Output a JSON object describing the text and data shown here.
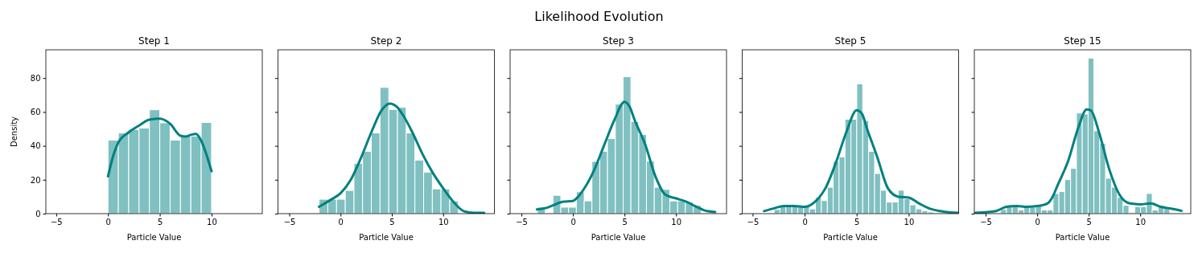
{
  "chart_data": [
    {
      "type": "histogram",
      "title": "Step 1",
      "xlabel": "Particle Value",
      "ylabel": "Density",
      "annotations": [
        "Likelihood Evolution"
      ],
      "color": "#80c0c0",
      "xlim": [
        -6.0,
        14.9
      ],
      "xticks": [
        -5,
        0,
        5,
        10
      ],
      "ylim": [
        0,
        96.7
      ],
      "yticks": [
        0,
        20,
        40,
        60,
        80
      ],
      "bins": [
        0,
        1,
        2,
        3,
        4,
        5,
        6,
        7,
        8,
        9,
        10
      ],
      "values": [
        43.4,
        47.6,
        49.7,
        50.5,
        61.3,
        53.6,
        43.4,
        45.8,
        45.8,
        53.8
      ],
      "series": [
        {
          "type": "line",
          "color": "#008080",
          "x": [
            0,
            0.5,
            1,
            2,
            3,
            4,
            5,
            6,
            7,
            7.5,
            8,
            8.5,
            9,
            9.5,
            10
          ],
          "values": [
            22,
            34,
            42,
            48,
            52,
            55.5,
            56,
            53,
            46,
            45.5,
            46.5,
            47,
            43,
            35,
            25
          ]
        }
      ]
    },
    {
      "type": "histogram",
      "title": "Step 2",
      "xlabel": "Particle Value",
      "tick_labels": "x",
      "color": "#80c0c0",
      "xlim": [
        -6.1,
        15.0
      ],
      "xticks": [
        -5,
        0,
        5,
        10
      ],
      "ylim": [
        0,
        96.7
      ],
      "yticks": [
        0,
        20,
        40,
        60,
        80
      ],
      "bins": [
        -2.09,
        -1.24,
        -0.39,
        0.46,
        1.31,
        2.15,
        3.0,
        3.85,
        4.7,
        5.55,
        6.4,
        7.25,
        8.1,
        8.95,
        9.79,
        10.64,
        11.49
      ],
      "values": [
        8.5,
        8.5,
        8.5,
        13.7,
        29.7,
        36.8,
        47.6,
        74.5,
        61.5,
        62.7,
        47.6,
        31.6,
        24.5,
        14.6,
        14.6,
        7.5
      ],
      "series": [
        {
          "type": "line",
          "color": "#008080",
          "x": [
            -2.1,
            -1,
            0,
            1,
            2,
            3,
            4,
            4.8,
            5.5,
            6,
            7,
            8,
            9,
            10,
            11,
            12,
            13,
            14
          ],
          "values": [
            4,
            8,
            12,
            20,
            33,
            48,
            61,
            65,
            63,
            59,
            48,
            35,
            24,
            15,
            7,
            1.5,
            0.5,
            0.5
          ]
        }
      ]
    },
    {
      "type": "histogram",
      "title": "Step 3",
      "xlabel": "Particle Value",
      "tick_labels": "x",
      "color": "#80c0c0",
      "xlim": [
        -6.1,
        14.9
      ],
      "xticks": [
        -5,
        0,
        5,
        10
      ],
      "ylim": [
        0,
        96.7
      ],
      "yticks": [
        0,
        20,
        40,
        60,
        80
      ],
      "bins": [
        -3.45,
        -2.69,
        -1.94,
        -1.18,
        -0.43,
        0.33,
        1.09,
        1.84,
        2.6,
        3.35,
        4.11,
        4.87,
        5.62,
        6.38,
        7.13,
        7.89,
        8.65,
        9.4,
        10.16,
        10.91,
        11.67,
        12.43,
        13.18,
        13.94
      ],
      "values": [
        3.8,
        0,
        10.8,
        3.8,
        3.8,
        12.9,
        7.5,
        30.8,
        36.8,
        44.3,
        64.6,
        80.8,
        54.4,
        46.7,
        31,
        15.6,
        14.3,
        7.5,
        7.5,
        6.9,
        4.9,
        null,
        null
      ],
      "series": [
        {
          "type": "line",
          "color": "#008080",
          "x": [
            -3.5,
            -2.5,
            -1.5,
            -1,
            0,
            0.5,
            1,
            2,
            3,
            4,
            5,
            5.5,
            6,
            7,
            8,
            9,
            10,
            11,
            12,
            13,
            13.8
          ],
          "values": [
            2.5,
            3.5,
            6,
            7,
            7.5,
            10,
            14,
            25,
            40,
            55,
            66,
            63,
            55,
            41,
            22,
            11,
            9,
            7,
            4,
            1.5,
            1
          ]
        }
      ]
    },
    {
      "type": "histogram",
      "title": "Step 5",
      "xlabel": "Particle Value",
      "tick_labels": "x",
      "color": "#80c0c0",
      "xlim": [
        -6.0,
        14.8
      ],
      "xticks": [
        -5,
        0,
        5,
        10
      ],
      "ylim": [
        0,
        96.7
      ],
      "yticks": [
        0,
        20,
        40,
        60,
        80
      ],
      "bins": [
        -3.5,
        -2.93,
        -2.37,
        -1.8,
        -1.23,
        -0.66,
        -0.1,
        0.47,
        1.04,
        1.61,
        2.18,
        2.74,
        3.31,
        3.88,
        4.45,
        5.01,
        5.58,
        6.15,
        6.72,
        7.29,
        7.85,
        8.42,
        8.99,
        9.56,
        10.12,
        10.69,
        11.26,
        11.83,
        12.4,
        12.96,
        13.53,
        14.1,
        14.66
      ],
      "values": [
        0.5,
        2.5,
        4.7,
        4.7,
        4.2,
        4.2,
        4.2,
        2.8,
        9.6,
        7.7,
        15.6,
        30.8,
        33.5,
        55.7,
        55.7,
        76.6,
        55,
        36.8,
        23.7,
        13.8,
        6.8,
        6.8,
        13.8,
        8.8,
        5.2,
        2.8,
        1.6,
        1,
        0.5,
        0.5,
        0.3,
        0.3
      ],
      "series": [
        {
          "type": "line",
          "color": "#008080",
          "x": [
            -3.9,
            -3,
            -2,
            -1,
            0,
            1,
            2,
            3,
            4,
            5,
            5.5,
            6,
            7,
            8,
            9,
            10,
            11,
            12,
            13,
            14,
            14.8
          ],
          "values": [
            1.5,
            3,
            4.5,
            4.5,
            4,
            7,
            15,
            30,
            48,
            61,
            59,
            50,
            33,
            15,
            10,
            9.5,
            6,
            3,
            1.5,
            0.7,
            0.5
          ]
        }
      ]
    },
    {
      "type": "histogram",
      "title": "Step 15",
      "xlabel": "Particle Value",
      "tick_labels": "x",
      "color": "#80c0c0",
      "xlim": [
        -6.1,
        14.9
      ],
      "xticks": [
        -5,
        0,
        5,
        10
      ],
      "ylim": [
        0,
        96.7
      ],
      "yticks": [
        0,
        20,
        40,
        60,
        80
      ],
      "bins": [
        -3.55,
        -2.98,
        -2.42,
        -1.85,
        -1.29,
        -0.72,
        -0.16,
        0.41,
        0.98,
        1.54,
        2.11,
        2.67,
        3.24,
        3.81,
        4.37,
        4.94,
        5.5,
        6.07,
        6.63,
        7.2,
        7.76,
        8.33,
        8.9,
        9.46,
        10.03,
        10.59,
        11.16,
        11.73,
        12.29,
        12.86,
        13.42,
        13.99
      ],
      "values": [
        2.5,
        4.9,
        4.9,
        2.2,
        3.8,
        3.8,
        4.9,
        2.2,
        2.2,
        11.9,
        13,
        20.1,
        26.7,
        59.4,
        58.8,
        91.8,
        48.9,
        41.5,
        20.9,
        15.6,
        9.6,
        4.9,
        0.6,
        4.1,
        4.1,
        11.9,
        2.2,
        4.1,
        3.5,
        null,
        null
      ],
      "series": [
        {
          "type": "line",
          "color": "#008080",
          "x": [
            -6,
            -5,
            -4,
            -3,
            -2,
            -1,
            0,
            0.5,
            1,
            1.5,
            2,
            3,
            4,
            4.8,
            5.2,
            6,
            7,
            8,
            9,
            10,
            11,
            12,
            13,
            14
          ],
          "values": [
            0.5,
            0.8,
            1.5,
            4,
            4.5,
            4,
            4.5,
            5,
            6,
            10,
            17,
            31,
            51,
            61.5,
            61,
            48,
            26,
            11,
            6,
            5.5,
            6,
            4,
            3,
            1.7
          ]
        }
      ]
    }
  ]
}
